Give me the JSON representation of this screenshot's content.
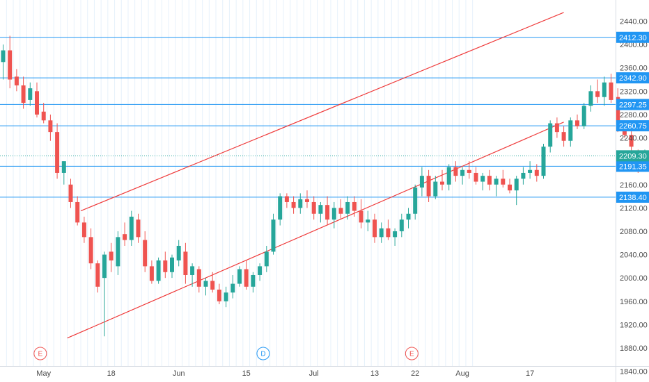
{
  "chart_data": {
    "type": "candlestick",
    "title": "",
    "colors": {
      "up": "#26a69a",
      "down": "#ef5350",
      "level": "#2196f3",
      "channel": "#ef3b3b",
      "last": "#26a69a"
    },
    "y_axis": {
      "range": [
        1845,
        2470
      ],
      "ticks": [
        "2440.00",
        "2400.00",
        "2360.00",
        "2320.00",
        "2280.00",
        "2240.00",
        "2160.00",
        "2120.00",
        "2080.00",
        "2040.00",
        "2000.00",
        "1960.00",
        "1920.00",
        "1880.00",
        "1840.00"
      ]
    },
    "x_axis": {
      "ticks": [
        {
          "label": "May",
          "index": 6
        },
        {
          "label": "18",
          "index": 16
        },
        {
          "label": "Jun",
          "index": 26
        },
        {
          "label": "15",
          "index": 36
        },
        {
          "label": "Jul",
          "index": 46
        },
        {
          "label": "13",
          "index": 55
        },
        {
          "label": "22",
          "index": 61
        },
        {
          "label": "Aug",
          "index": 68
        },
        {
          "label": "17",
          "index": 78
        }
      ]
    },
    "levels": [
      {
        "label": "2412.30",
        "value": 2412.3
      },
      {
        "label": "2342.90",
        "value": 2342.9
      },
      {
        "label": "2297.25",
        "value": 2297.25
      },
      {
        "label": "2260.75",
        "value": 2260.75
      },
      {
        "label": "2191.35",
        "value": 2191.35
      },
      {
        "label": "2138.40",
        "value": 2138.4
      }
    ],
    "last_price": {
      "label": "2209.30",
      "value": 2209.3
    },
    "channel": {
      "upper": {
        "from": [
          11.5,
          2115
        ],
        "to": [
          83,
          2455
        ]
      },
      "lower": {
        "from": [
          9.5,
          1897
        ],
        "to": [
          83,
          2267
        ]
      }
    },
    "events": [
      {
        "label": "E",
        "index": 5.5,
        "color": "#ef5350"
      },
      {
        "label": "D",
        "index": 38.5,
        "color": "#2196f3"
      },
      {
        "label": "E",
        "index": 60.5,
        "color": "#ef5350"
      }
    ],
    "candles": [
      [
        2370,
        2400,
        2340,
        2390
      ],
      [
        2390,
        2415,
        2325,
        2340
      ],
      [
        2345,
        2358,
        2320,
        2330
      ],
      [
        2330,
        2345,
        2290,
        2300
      ],
      [
        2305,
        2335,
        2295,
        2325
      ],
      [
        2320,
        2335,
        2275,
        2280
      ],
      [
        2285,
        2300,
        2265,
        2270
      ],
      [
        2270,
        2280,
        2235,
        2250
      ],
      [
        2250,
        2265,
        2170,
        2180
      ],
      [
        2180,
        2200,
        2160,
        2200
      ],
      [
        2160,
        2170,
        2120,
        2130
      ],
      [
        2130,
        2140,
        2090,
        2095
      ],
      [
        2095,
        2105,
        2060,
        2070
      ],
      [
        2070,
        2085,
        2015,
        2025
      ],
      [
        2025,
        2030,
        1975,
        1985
      ],
      [
        2000,
        2045,
        1900,
        2040
      ],
      [
        2045,
        2060,
        2010,
        2030
      ],
      [
        2020,
        2080,
        2005,
        2070
      ],
      [
        2075,
        2095,
        2055,
        2065
      ],
      [
        2065,
        2115,
        2055,
        2105
      ],
      [
        2100,
        2110,
        2060,
        2070
      ],
      [
        2065,
        2080,
        2010,
        2020
      ],
      [
        2020,
        2030,
        1990,
        1995
      ],
      [
        1995,
        2035,
        1990,
        2030
      ],
      [
        2030,
        2045,
        2000,
        2010
      ],
      [
        2010,
        2040,
        2000,
        2035
      ],
      [
        2030,
        2065,
        2020,
        2055
      ],
      [
        2045,
        2060,
        1990,
        2005
      ],
      [
        2005,
        2025,
        1985,
        2020
      ],
      [
        2015,
        2020,
        1975,
        1985
      ],
      [
        1985,
        2000,
        1970,
        1995
      ],
      [
        1995,
        2010,
        1975,
        1980
      ],
      [
        1980,
        1990,
        1955,
        1960
      ],
      [
        1960,
        1985,
        1950,
        1975
      ],
      [
        1975,
        2005,
        1965,
        1990
      ],
      [
        1990,
        2020,
        1985,
        2015
      ],
      [
        2015,
        2030,
        1980,
        1985
      ],
      [
        1985,
        2010,
        1975,
        2005
      ],
      [
        2005,
        2025,
        1995,
        2020
      ],
      [
        2020,
        2055,
        2010,
        2045
      ],
      [
        2045,
        2110,
        2040,
        2100
      ],
      [
        2100,
        2145,
        2090,
        2140
      ],
      [
        2140,
        2145,
        2120,
        2130
      ],
      [
        2130,
        2140,
        2110,
        2120
      ],
      [
        2120,
        2145,
        2110,
        2135
      ]
    ],
    "candles_2": [
      [
        2135,
        2150,
        2120,
        2130
      ],
      [
        2130,
        2140,
        2100,
        2110
      ],
      [
        2110,
        2130,
        2095,
        2125
      ],
      [
        2125,
        2140,
        2090,
        2100
      ],
      [
        2100,
        2130,
        2085,
        2120
      ],
      [
        2120,
        2135,
        2100,
        2110
      ],
      [
        2110,
        2140,
        2100,
        2130
      ],
      [
        2130,
        2140,
        2105,
        2115
      ],
      [
        2115,
        2135,
        2085,
        2095
      ],
      [
        2095,
        2115,
        2080,
        2100
      ],
      [
        2100,
        2110,
        2060,
        2070
      ],
      [
        2070,
        2095,
        2060,
        2085
      ],
      [
        2085,
        2100,
        2065,
        2070
      ],
      [
        2070,
        2085,
        2055,
        2080
      ],
      [
        2080,
        2110,
        2070,
        2100
      ],
      [
        2100,
        2120,
        2085,
        2110
      ],
      [
        2110,
        2160,
        2100,
        2155
      ],
      [
        2155,
        2190,
        2140,
        2175
      ],
      [
        2175,
        2185,
        2130,
        2140
      ],
      [
        2140,
        2175,
        2135,
        2165
      ],
      [
        2165,
        2185,
        2150,
        2160
      ],
      [
        2160,
        2195,
        2150,
        2190
      ],
      [
        2190,
        2200,
        2165,
        2175
      ],
      [
        2175,
        2190,
        2160,
        2185
      ],
      [
        2185,
        2200,
        2170,
        2180
      ],
      [
        2180,
        2190,
        2160,
        2165
      ],
      [
        2165,
        2180,
        2150,
        2175
      ],
      [
        2175,
        2185,
        2150,
        2160
      ],
      [
        2160,
        2175,
        2140,
        2170
      ],
      [
        2170,
        2185,
        2155,
        2160
      ],
      [
        2160,
        2170,
        2145,
        2150
      ],
      [
        2150,
        2175,
        2125,
        2170
      ],
      [
        2170,
        2190,
        2160,
        2180
      ],
      [
        2180,
        2200,
        2170,
        2185
      ],
      [
        2185,
        2195,
        2165,
        2175
      ]
    ],
    "candles_3": [
      [
        2175,
        2230,
        2170,
        2225
      ],
      [
        2225,
        2270,
        2215,
        2265
      ],
      [
        2265,
        2275,
        2240,
        2250
      ],
      [
        2250,
        2260,
        2225,
        2235
      ],
      [
        2235,
        2275,
        2225,
        2270
      ],
      [
        2270,
        2280,
        2255,
        2260
      ],
      [
        2260,
        2300,
        2255,
        2295
      ],
      [
        2295,
        2330,
        2285,
        2320
      ],
      [
        2320,
        2340,
        2300,
        2310
      ],
      [
        2310,
        2345,
        2295,
        2335
      ],
      [
        2335,
        2350,
        2300,
        2305
      ],
      [
        2310,
        2325,
        2250,
        2260
      ],
      [
        2260,
        2270,
        2240,
        2245
      ],
      [
        2245,
        2255,
        2215,
        2225
      ],
      [
        2210,
        2220,
        2180,
        2205
      ],
      [
        2205,
        2220,
        2195,
        2209.3
      ]
    ]
  },
  "labels": {
    "date_ticks": [
      "May",
      "18",
      "Jun",
      "15",
      "Jul",
      "13",
      "22",
      "Aug",
      "17"
    ]
  }
}
